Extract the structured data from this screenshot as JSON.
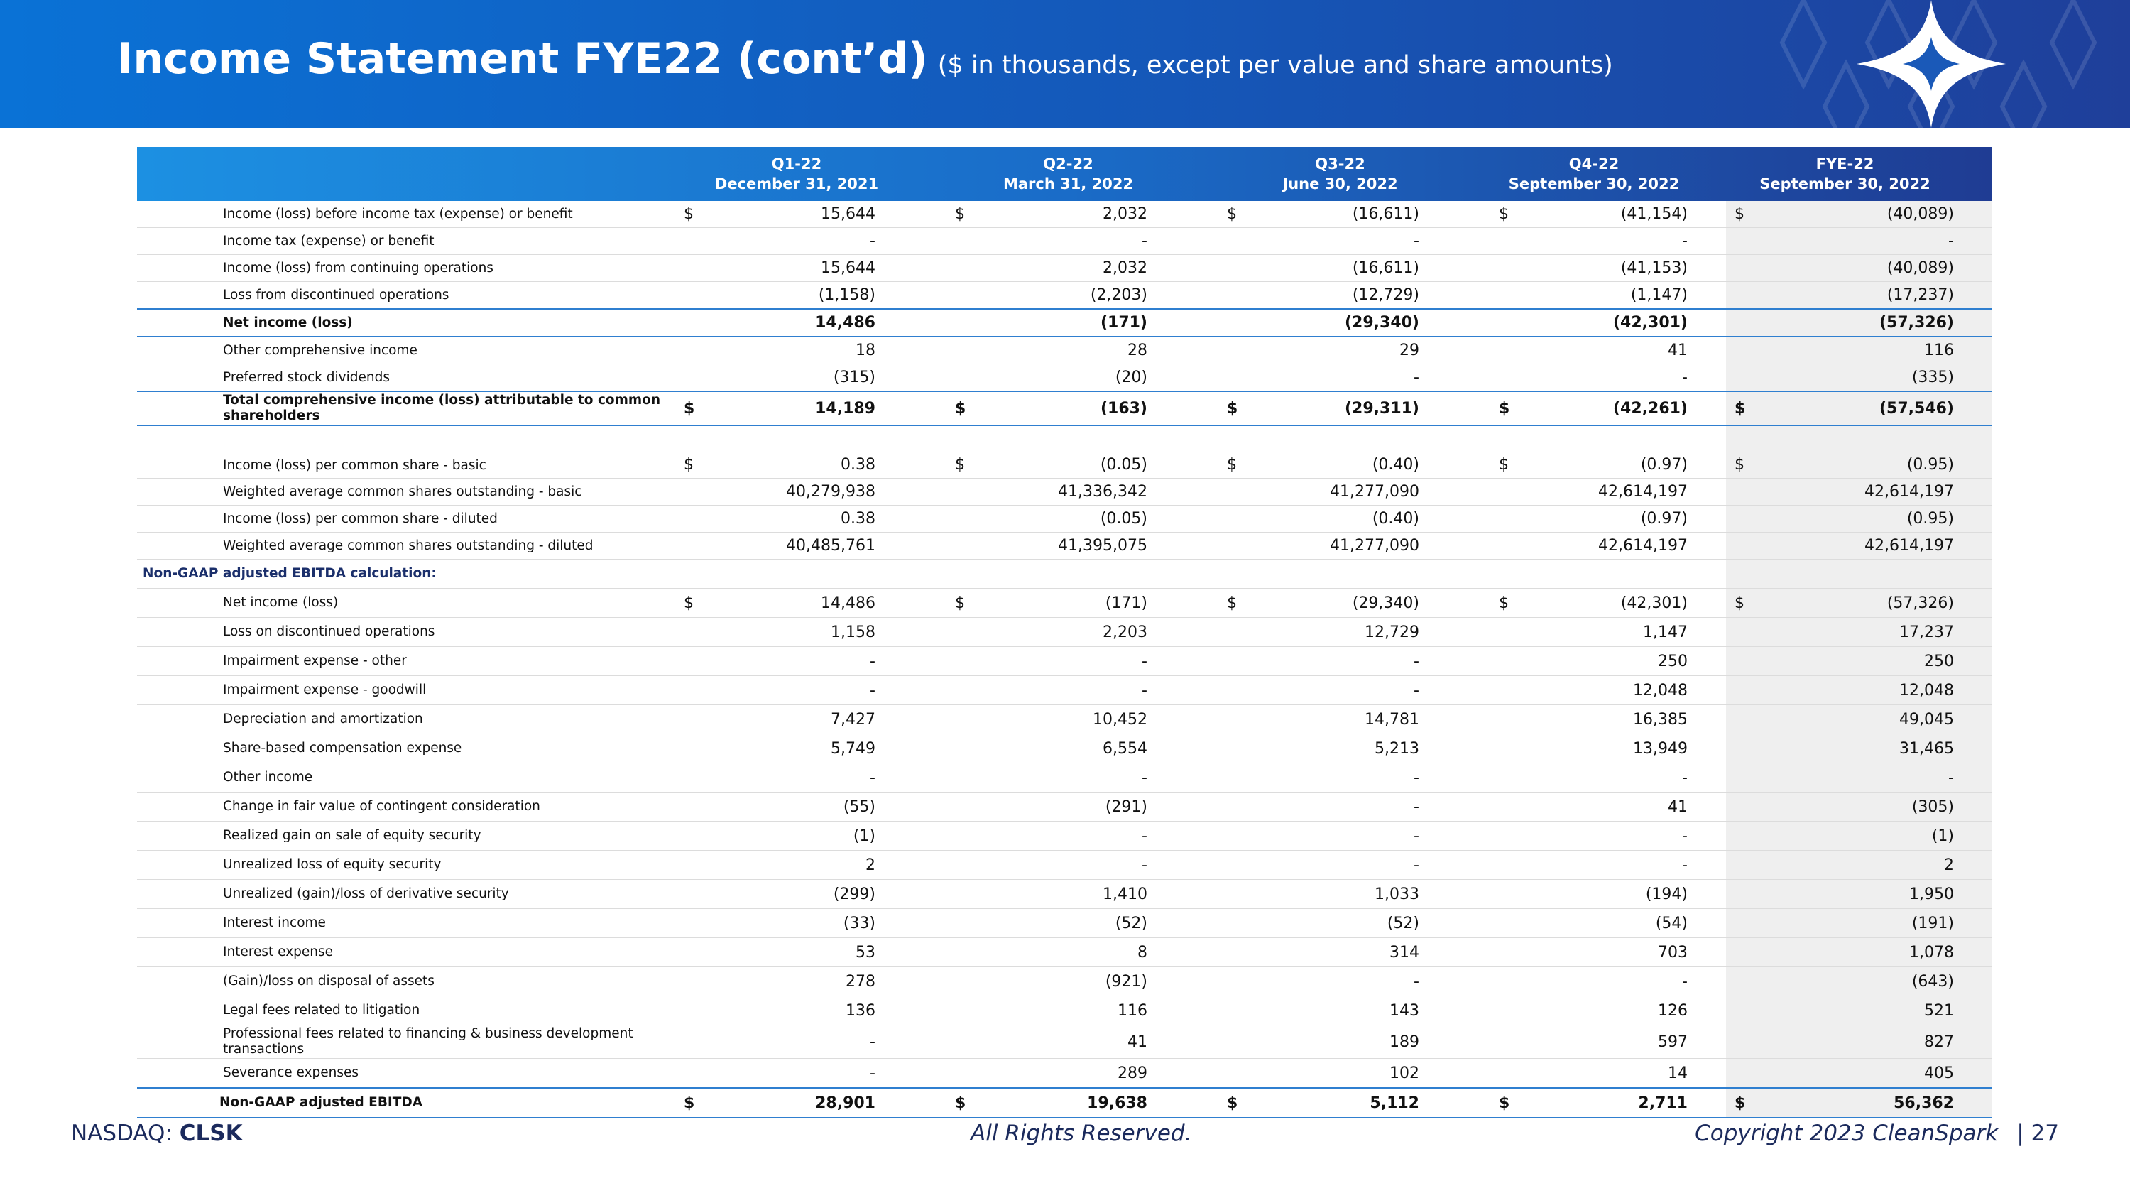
{
  "header": {
    "title": "Income Statement FYE22 (cont’d)",
    "subtitle": "($ in thousands, except per value and share amounts)"
  },
  "table": {
    "columns": [
      {
        "period": "Q1-22",
        "date": "December 31, 2021"
      },
      {
        "period": "Q2-22",
        "date": "March 31, 2022"
      },
      {
        "period": "Q3-22",
        "date": "June 30, 2022"
      },
      {
        "period": "Q4-22",
        "date": "September 30, 2022"
      },
      {
        "period": "FYE-22",
        "date": "September 30, 2022"
      }
    ],
    "rows": [
      {
        "label": "Income (loss) before income tax (expense) or benefit",
        "currency": "$",
        "values": [
          "15,644",
          "2,032",
          "(16,611)",
          "(41,154)",
          "(40,089)"
        ]
      },
      {
        "label": "Income tax (expense) or benefit",
        "values": [
          "-",
          "-",
          "-",
          "-",
          "-"
        ]
      },
      {
        "label": "Income (loss) from continuing operations",
        "values": [
          "15,644",
          "2,032",
          "(16,611)",
          "(41,153)",
          "(40,089)"
        ]
      },
      {
        "label": "Loss from discontinued operations",
        "values": [
          "(1,158)",
          "(2,203)",
          "(12,729)",
          "(1,147)",
          "(17,237)"
        ]
      },
      {
        "label": "Net income (loss)",
        "style": "bold",
        "values": [
          "14,486",
          "(171)",
          "(29,340)",
          "(42,301)",
          "(57,326)"
        ]
      },
      {
        "label": "Other comprehensive income",
        "values": [
          "18",
          "28",
          "29",
          "41",
          "116"
        ]
      },
      {
        "label": "Preferred stock dividends",
        "values": [
          "(315)",
          "(20)",
          "-",
          "-",
          "(335)"
        ]
      },
      {
        "label": "Total comprehensive income (loss) attributable to common shareholders",
        "style": "bold",
        "currency": "$",
        "values": [
          "14,189",
          "(163)",
          "(29,311)",
          "(42,261)",
          "(57,546)"
        ]
      },
      {
        "label": "Income (loss) per common share - basic",
        "currency": "$",
        "values": [
          "0.38",
          "(0.05)",
          "(0.40)",
          "(0.97)",
          "(0.95)"
        ]
      },
      {
        "label": "Weighted average common shares outstanding - basic",
        "values": [
          "40,279,938",
          "41,336,342",
          "41,277,090",
          "42,614,197",
          "42,614,197"
        ]
      },
      {
        "label": "Income (loss) per common share - diluted",
        "values": [
          "0.38",
          "(0.05)",
          "(0.40)",
          "(0.97)",
          "(0.95)"
        ]
      },
      {
        "label": "Weighted average common shares outstanding - diluted",
        "values": [
          "40,485,761",
          "41,395,075",
          "41,277,090",
          "42,614,197",
          "42,614,197"
        ]
      },
      {
        "label": "Non-GAAP adjusted EBITDA calculation:",
        "style": "section"
      },
      {
        "label": "Net income (loss)",
        "currency": "$",
        "values": [
          "14,486",
          "(171)",
          "(29,340)",
          "(42,301)",
          "(57,326)"
        ]
      },
      {
        "label": "Loss on discontinued operations",
        "values": [
          "1,158",
          "2,203",
          "12,729",
          "1,147",
          "17,237"
        ]
      },
      {
        "label": "Impairment expense - other",
        "values": [
          "-",
          "-",
          "-",
          "250",
          "250"
        ]
      },
      {
        "label": "Impairment expense - goodwill",
        "values": [
          "-",
          "-",
          "-",
          "12,048",
          "12,048"
        ]
      },
      {
        "label": "Depreciation and amortization",
        "values": [
          "7,427",
          "10,452",
          "14,781",
          "16,385",
          "49,045"
        ]
      },
      {
        "label": "Share-based compensation expense",
        "values": [
          "5,749",
          "6,554",
          "5,213",
          "13,949",
          "31,465"
        ]
      },
      {
        "label": "Other income",
        "values": [
          "-",
          "-",
          "-",
          "-",
          "-"
        ]
      },
      {
        "label": "Change in fair value of contingent consideration",
        "values": [
          "(55)",
          "(291)",
          "-",
          "41",
          "(305)"
        ]
      },
      {
        "label": "Realized gain on sale of equity security",
        "values": [
          "(1)",
          "-",
          "-",
          "-",
          "(1)"
        ]
      },
      {
        "label": "Unrealized loss of equity security",
        "values": [
          "2",
          "-",
          "-",
          "-",
          "2"
        ]
      },
      {
        "label": "Unrealized (gain)/loss of derivative security",
        "values": [
          "(299)",
          "1,410",
          "1,033",
          "(194)",
          "1,950"
        ]
      },
      {
        "label": "Interest income",
        "values": [
          "(33)",
          "(52)",
          "(52)",
          "(54)",
          "(191)"
        ]
      },
      {
        "label": "Interest expense",
        "values": [
          "53",
          "8",
          "314",
          "703",
          "1,078"
        ]
      },
      {
        "label": "(Gain)/loss on disposal of assets",
        "values": [
          "278",
          "(921)",
          "-",
          "-",
          "(643)"
        ]
      },
      {
        "label": "Legal fees related to litigation",
        "values": [
          "136",
          "116",
          "143",
          "126",
          "521"
        ]
      },
      {
        "label": "Professional fees related to financing & business development transactions",
        "values": [
          "-",
          "41",
          "189",
          "597",
          "827"
        ]
      },
      {
        "label": "Severance expenses",
        "values": [
          "-",
          "289",
          "102",
          "14",
          "405"
        ]
      },
      {
        "label": "Non-GAAP adjusted EBITDA",
        "style": "bold",
        "currency": "$",
        "values": [
          "28,901",
          "19,638",
          "5,112",
          "2,711",
          "56,362"
        ]
      }
    ]
  },
  "footer": {
    "exchange": "NASDAQ:",
    "ticker": "CLSK",
    "center": "All Rights Reserved.",
    "copyright": "Copyright 2023 CleanSpark",
    "page": "| 27"
  }
}
